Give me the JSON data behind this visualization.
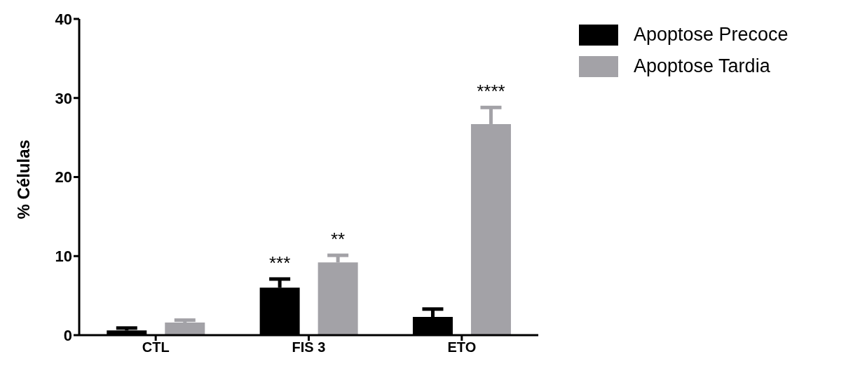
{
  "chart_data": {
    "type": "bar",
    "ylabel": "% Células",
    "categories": [
      "CTL",
      "FIS 3",
      "ETO"
    ],
    "series": [
      {
        "name": "Apoptose Precoce",
        "color": "#000000",
        "values": [
          0.6,
          6.0,
          2.3
        ],
        "errors": [
          [
            0.6,
            0.9
          ],
          [
            6.0,
            7.1
          ],
          [
            2.3,
            3.3
          ]
        ]
      },
      {
        "name": "Apoptose Tardia",
        "color": "#a3a2a7",
        "values": [
          1.6,
          9.2,
          26.7
        ],
        "errors": [
          [
            1.6,
            1.9
          ],
          [
            9.2,
            10.1
          ],
          [
            26.7,
            28.8
          ]
        ]
      }
    ],
    "annotations": [
      "***",
      "**",
      "****"
    ],
    "ylim": [
      0,
      40
    ],
    "yticks": [
      0,
      10,
      20,
      30,
      40
    ],
    "grid": false,
    "legend": "top right"
  }
}
